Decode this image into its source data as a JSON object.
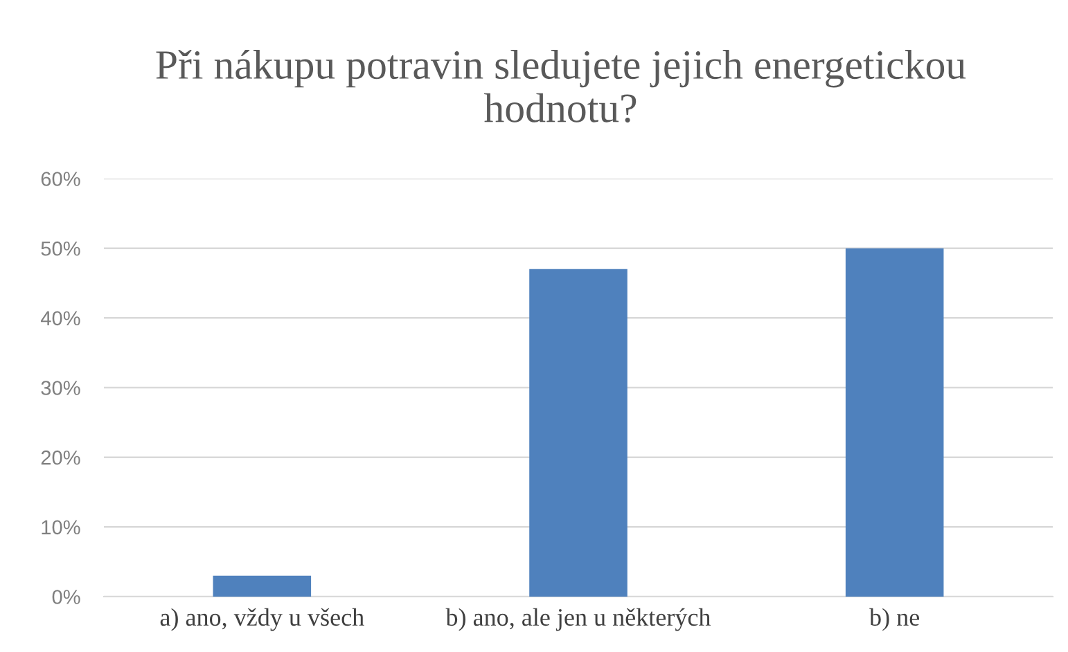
{
  "chart_data": {
    "type": "bar",
    "title": "Při nákupu potravin sledujete jejich energetickou\nhodnotu?",
    "categories": [
      "a) ano, vždy u všech",
      "b) ano, ale jen u některých",
      "b) ne"
    ],
    "values": [
      3,
      47,
      50
    ],
    "color": "#4f81bd",
    "ylim": [
      0,
      60
    ],
    "yticks": [
      {
        "value": 0,
        "label": "0%"
      },
      {
        "value": 10,
        "label": "10%"
      },
      {
        "value": 20,
        "label": "20%"
      },
      {
        "value": 30,
        "label": "30%"
      },
      {
        "value": 40,
        "label": "40%"
      },
      {
        "value": 50,
        "label": "50%"
      },
      {
        "value": 60,
        "label": "60%"
      }
    ],
    "grid": "y",
    "legend": false
  }
}
